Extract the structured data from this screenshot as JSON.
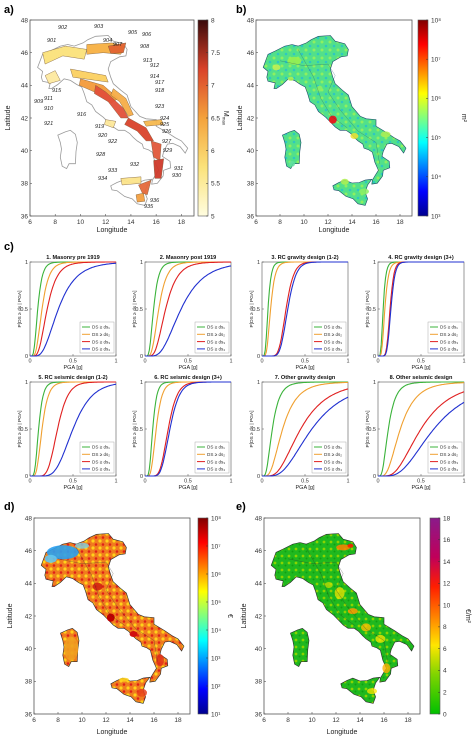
{
  "panels": {
    "a": {
      "label": "a)",
      "xlabel": "Longitude",
      "ylabel": "Latitude",
      "xticks": [
        "6",
        "8",
        "10",
        "12",
        "14",
        "16",
        "18"
      ],
      "yticks": [
        "36",
        "38",
        "40",
        "42",
        "44",
        "46",
        "48"
      ],
      "cbar_label": "M",
      "cbar_sub": "max",
      "cbar_ticks": [
        "5",
        "5.5",
        "6",
        "6.5",
        "7",
        "7.5",
        "8"
      ],
      "zone_labels": [
        "901",
        "902",
        "903",
        "904",
        "905",
        "906",
        "907",
        "908",
        "909",
        "910",
        "911",
        "912",
        "913",
        "914",
        "915",
        "916",
        "917",
        "918",
        "919",
        "920",
        "921",
        "922",
        "923",
        "924",
        "925",
        "926",
        "927",
        "928",
        "929",
        "930",
        "931",
        "932",
        "933",
        "934",
        "935",
        "936"
      ]
    },
    "b": {
      "label": "b)",
      "xlabel": "Longitude",
      "ylabel": "Latitude",
      "xticks": [
        "6",
        "8",
        "10",
        "12",
        "14",
        "16",
        "18"
      ],
      "yticks": [
        "36",
        "38",
        "40",
        "42",
        "44",
        "46",
        "48"
      ],
      "cbar_label": "m²",
      "cbar_ticks": [
        "10³",
        "10⁴",
        "10⁵",
        "10⁶",
        "10⁷",
        "10⁸"
      ]
    },
    "c": {
      "label": "c)",
      "xlabel": "PGA [g]",
      "ylabel": "P[DS ≥ ds | PGA]",
      "xticks": [
        "0",
        "0.5",
        "1"
      ],
      "yticks": [
        "0",
        "0.5",
        "1"
      ],
      "legend": [
        "DS ≥ ds₁",
        "DS ≥ ds₂",
        "DS ≥ ds₃",
        "DS ≥ ds₄"
      ],
      "colors": [
        "#3bb33b",
        "#f0a030",
        "#e02020",
        "#2030d0"
      ]
    },
    "d": {
      "label": "d)",
      "xlabel": "Longitude",
      "ylabel": "Latitude",
      "xticks": [
        "6",
        "8",
        "10",
        "12",
        "14",
        "16",
        "18"
      ],
      "yticks": [
        "36",
        "38",
        "40",
        "42",
        "44",
        "46",
        "48"
      ],
      "cbar_label": "€",
      "cbar_ticks": [
        "10¹",
        "10²",
        "10³",
        "10⁴",
        "10⁵",
        "10⁶",
        "10⁷",
        "10⁸"
      ]
    },
    "e": {
      "label": "e)",
      "xlabel": "Longitude",
      "ylabel": "Latitude",
      "xticks": [
        "6",
        "8",
        "10",
        "12",
        "14",
        "16",
        "18"
      ],
      "yticks": [
        "36",
        "38",
        "40",
        "42",
        "44",
        "46",
        "48"
      ],
      "cbar_label": "€/m²",
      "cbar_ticks": [
        "0",
        "2",
        "4",
        "6",
        "8",
        "10",
        "12",
        "14",
        "16",
        "18"
      ]
    }
  },
  "chart_data": [
    {
      "type": "line",
      "title": "1. Masonry pre 1919",
      "x_range": [
        0,
        1
      ],
      "y_range": [
        0,
        1
      ],
      "series": [
        {
          "name": "DS ≥ ds₁",
          "median": 0.09,
          "beta": 0.45
        },
        {
          "name": "DS ≥ ds₂",
          "median": 0.14,
          "beta": 0.45
        },
        {
          "name": "DS ≥ ds₃",
          "median": 0.2,
          "beta": 0.45
        },
        {
          "name": "DS ≥ ds₄",
          "median": 0.33,
          "beta": 0.5
        }
      ]
    },
    {
      "type": "line",
      "title": "2. Masonry post 1919",
      "x_range": [
        0,
        1
      ],
      "y_range": [
        0,
        1
      ],
      "series": [
        {
          "name": "DS ≥ ds₁",
          "median": 0.1,
          "beta": 0.45
        },
        {
          "name": "DS ≥ ds₂",
          "median": 0.16,
          "beta": 0.45
        },
        {
          "name": "DS ≥ ds₃",
          "median": 0.24,
          "beta": 0.45
        },
        {
          "name": "DS ≥ ds₄",
          "median": 0.42,
          "beta": 0.5
        }
      ]
    },
    {
      "type": "line",
      "title": "3. RC gravity design (1-2)",
      "x_range": [
        0,
        1
      ],
      "y_range": [
        0,
        1
      ],
      "series": [
        {
          "name": "DS ≥ ds₁",
          "median": 0.07,
          "beta": 0.4
        },
        {
          "name": "DS ≥ ds₂",
          "median": 0.1,
          "beta": 0.4
        },
        {
          "name": "DS ≥ ds₃",
          "median": 0.28,
          "beta": 0.25
        },
        {
          "name": "DS ≥ ds₄",
          "median": 0.3,
          "beta": 0.25
        }
      ]
    },
    {
      "type": "line",
      "title": "4. RC gravity design (3+)",
      "x_range": [
        0,
        1
      ],
      "y_range": [
        0,
        1
      ],
      "series": [
        {
          "name": "DS ≥ ds₁",
          "median": 0.06,
          "beta": 0.4
        },
        {
          "name": "DS ≥ ds₂",
          "median": 0.08,
          "beta": 0.4
        },
        {
          "name": "DS ≥ ds₃",
          "median": 0.14,
          "beta": 0.25
        },
        {
          "name": "DS ≥ ds₄",
          "median": 0.15,
          "beta": 0.25
        }
      ]
    },
    {
      "type": "line",
      "title": "5. RC seismic design (1-2)",
      "x_range": [
        0,
        1
      ],
      "y_range": [
        0,
        1
      ],
      "series": [
        {
          "name": "DS ≥ ds₁",
          "median": 0.1,
          "beta": 0.4
        },
        {
          "name": "DS ≥ ds₂",
          "median": 0.14,
          "beta": 0.4
        },
        {
          "name": "DS ≥ ds₃",
          "median": 0.32,
          "beta": 0.3
        },
        {
          "name": "DS ≥ ds₄",
          "median": 0.5,
          "beta": 0.35
        }
      ]
    },
    {
      "type": "line",
      "title": "6. RC seismic design (3+)",
      "x_range": [
        0,
        1
      ],
      "y_range": [
        0,
        1
      ],
      "series": [
        {
          "name": "DS ≥ ds₁",
          "median": 0.09,
          "beta": 0.4
        },
        {
          "name": "DS ≥ ds₂",
          "median": 0.13,
          "beta": 0.4
        },
        {
          "name": "DS ≥ ds₃",
          "median": 0.27,
          "beta": 0.3
        },
        {
          "name": "DS ≥ ds₄",
          "median": 0.29,
          "beta": 0.3
        }
      ]
    },
    {
      "type": "line",
      "title": "7. Other gravity design",
      "x_range": [
        0,
        1
      ],
      "y_range": [
        0,
        1
      ],
      "series": [
        {
          "name": "DS ≥ ds₁",
          "median": 0.12,
          "beta": 0.55
        },
        {
          "name": "DS ≥ ds₂",
          "median": 0.24,
          "beta": 0.55
        },
        {
          "name": "DS ≥ ds₃",
          "median": 0.45,
          "beta": 0.55
        },
        {
          "name": "DS ≥ ds₄",
          "median": 0.58,
          "beta": 0.55
        }
      ]
    },
    {
      "type": "line",
      "title": "8. Other seismic design",
      "x_range": [
        0,
        1
      ],
      "y_range": [
        0,
        1
      ],
      "series": [
        {
          "name": "DS ≥ ds₁",
          "median": 0.12,
          "beta": 0.55
        },
        {
          "name": "DS ≥ ds₂",
          "median": 0.26,
          "beta": 0.55
        },
        {
          "name": "DS ≥ ds₃",
          "median": 0.5,
          "beta": 0.55
        },
        {
          "name": "DS ≥ ds₄",
          "median": 0.65,
          "beta": 0.55
        }
      ]
    }
  ]
}
